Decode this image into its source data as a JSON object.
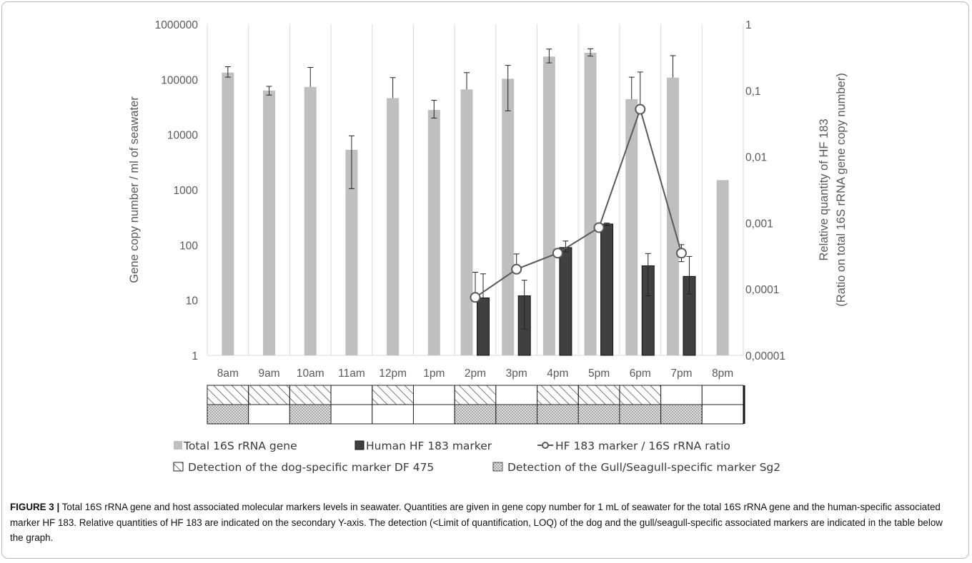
{
  "chart_data": {
    "type": "bar",
    "categories": [
      "8am",
      "9am",
      "10am",
      "11am",
      "12pm",
      "1pm",
      "2pm",
      "3pm",
      "4pm",
      "5pm",
      "6pm",
      "7pm",
      "8pm"
    ],
    "y_scale": "log",
    "ylim": [
      1,
      1000000
    ],
    "y_ticks": [
      "1",
      "10",
      "100",
      "1000",
      "10000",
      "100000",
      "1000000"
    ],
    "ylabel": "Gene copy number / ml of seawater",
    "y2_scale": "log",
    "y2lim": [
      1e-05,
      1
    ],
    "y2_ticks": [
      "0,00001",
      "0,0001",
      "0,001",
      "0,01",
      "0,1",
      "1"
    ],
    "y2label_line1": "Relative quantity of HF 183",
    "y2label_line2": "(Ratio on total 16S rRNA gene copy number)",
    "grid": "vertical",
    "legend_position": "bottom",
    "series": [
      {
        "name": "Total 16S rRNA gene",
        "kind": "bar",
        "color": "#bfbfbf",
        "values": [
          133000,
          63000,
          73000,
          5300,
          46000,
          28000,
          66000,
          103000,
          260000,
          305000,
          44000,
          108000,
          1500
        ],
        "err_high": [
          170000,
          75000,
          165000,
          9500,
          108000,
          42000,
          133000,
          180000,
          355000,
          360000,
          110000,
          270000,
          null
        ],
        "err_low": [
          110000,
          52000,
          null,
          1050,
          null,
          20000,
          null,
          27000,
          200000,
          265000,
          null,
          null,
          null
        ]
      },
      {
        "name": "Human HF 183 marker",
        "kind": "bar",
        "color": "#404040",
        "values": [
          null,
          null,
          null,
          null,
          null,
          null,
          11,
          12,
          90,
          240,
          42,
          27,
          null
        ],
        "err_high": [
          null,
          null,
          null,
          null,
          null,
          null,
          30,
          23,
          118,
          250,
          70,
          62,
          null
        ],
        "err_low": [
          null,
          null,
          null,
          null,
          null,
          null,
          null,
          3,
          75,
          225,
          12,
          13,
          null
        ]
      },
      {
        "name": "HF 183 marker / 16S rRNA ratio",
        "kind": "line",
        "axis": "secondary",
        "color": "#595959",
        "values": [
          null,
          null,
          null,
          null,
          null,
          null,
          7.5e-05,
          0.0002,
          0.00035,
          0.00085,
          0.052,
          0.00035,
          null
        ],
        "err_high": [
          null,
          null,
          null,
          null,
          null,
          null,
          0.00018,
          0.00034,
          null,
          null,
          0.19,
          0.00047,
          null
        ],
        "err_low": [
          null,
          null,
          null,
          null,
          null,
          null,
          null,
          null,
          null,
          null,
          null,
          0.00026,
          null
        ]
      }
    ],
    "detection_table": {
      "rows": [
        {
          "name": "Detection of the dog-specific marker DF 475",
          "pattern": "hatch",
          "values": [
            true,
            true,
            true,
            false,
            true,
            false,
            true,
            false,
            true,
            true,
            true,
            false,
            false
          ]
        },
        {
          "name": "Detection of the Gull/Seagull-specific marker Sg2",
          "pattern": "dots",
          "values": [
            true,
            false,
            true,
            false,
            false,
            false,
            true,
            true,
            true,
            true,
            true,
            true,
            false
          ]
        }
      ]
    }
  },
  "caption": {
    "label": "FIGURE 3 |",
    "text": "Total 16S rRNA gene and host associated molecular markers levels in seawater. Quantities are given in gene copy number for 1 mL of seawater for the total 16S rRNA gene and the human-specific associated marker HF 183. Relative quantities of HF 183 are indicated on the secondary Y-axis. The detection (<Limit of quantification, LOQ) of the dog and the gull/seagull-specific associated markers are indicated in the table below the graph."
  }
}
